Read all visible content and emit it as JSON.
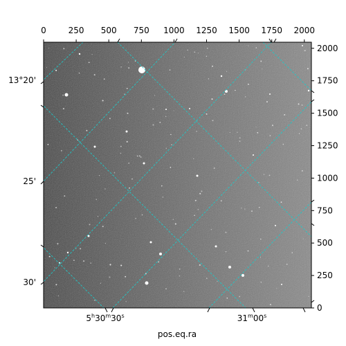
{
  "figure": {
    "xlabel": "pos.eq.ra",
    "top_ticks": [
      "0",
      "250",
      "500",
      "750",
      "1000",
      "1250",
      "1500",
      "1750",
      "2000"
    ],
    "right_ticks": [
      "0",
      "250",
      "500",
      "750",
      "1000",
      "1250",
      "1500",
      "1750",
      "2000"
    ],
    "ra_labels": [
      {
        "h": "5",
        "h_unit": "h",
        "m": "30",
        "m_unit": "m",
        "s": "30",
        "s_unit": "s"
      },
      {
        "m": "31",
        "m_unit": "m",
        "s": "00",
        "s_unit": "s"
      }
    ],
    "dec_labels": [
      "13°20'",
      "25'",
      "30'"
    ],
    "grid_color": "#20c8c8",
    "image_tone": "grayscale star field"
  }
}
